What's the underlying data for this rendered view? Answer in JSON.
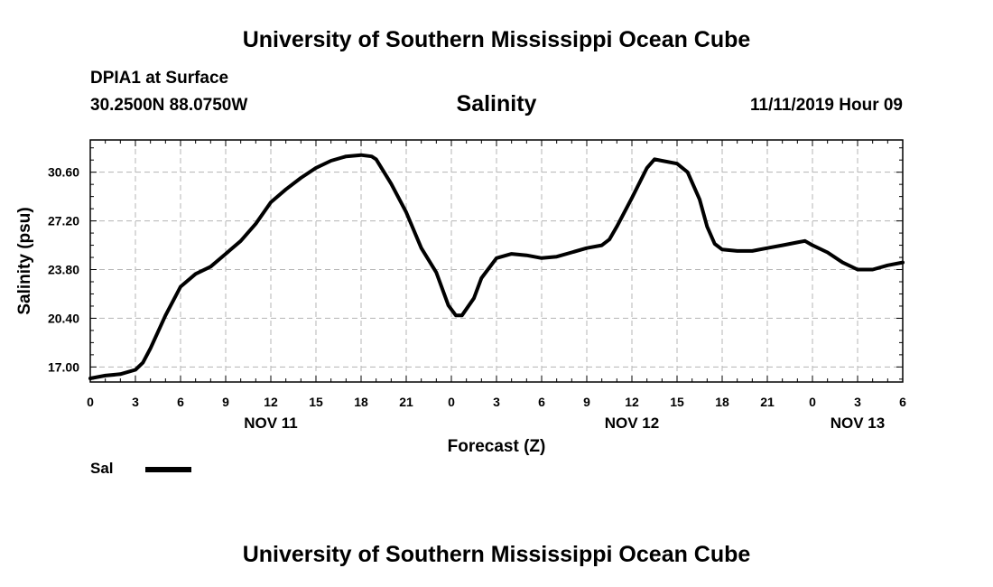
{
  "header": {
    "title": "University of Southern Mississippi Ocean Cube",
    "station": "DPIA1 at Surface",
    "coords": "30.2500N 88.0750W",
    "variable": "Salinity",
    "issued": "11/11/2019 Hour 09"
  },
  "footer": {
    "title": "University of Southern Mississippi Ocean Cube"
  },
  "legend": {
    "label": "Sal"
  },
  "chart_data": {
    "type": "line",
    "title": "Salinity",
    "xlabel": "Forecast (Z)",
    "ylabel": "Salinity (psu)",
    "x_unit": "hours from NOV 11 00Z",
    "xlim": [
      0,
      54
    ],
    "ylim": [
      15.95,
      32.85
    ],
    "y_ticks": [
      17.0,
      20.4,
      23.8,
      27.2,
      30.6
    ],
    "y_tick_labels": [
      "17.00",
      "20.40",
      "23.80",
      "27.20",
      "30.60"
    ],
    "x_ticks": [
      0,
      3,
      6,
      9,
      12,
      15,
      18,
      21,
      24,
      27,
      30,
      33,
      36,
      39,
      42,
      45,
      48,
      51,
      54
    ],
    "x_tick_labels": [
      "0",
      "3",
      "6",
      "9",
      "12",
      "15",
      "18",
      "21",
      "0",
      "3",
      "6",
      "9",
      "12",
      "15",
      "18",
      "21",
      "0",
      "3",
      "6"
    ],
    "date_labels": [
      {
        "x": 12,
        "label": "NOV 11"
      },
      {
        "x": 36,
        "label": "NOV 12"
      },
      {
        "x": 51,
        "label": "NOV 13"
      }
    ],
    "grid": true,
    "series": [
      {
        "name": "Sal",
        "color": "#000000",
        "points": [
          [
            0,
            16.2
          ],
          [
            1,
            16.4
          ],
          [
            2,
            16.5
          ],
          [
            3,
            16.8
          ],
          [
            3.5,
            17.3
          ],
          [
            4,
            18.3
          ],
          [
            5,
            20.6
          ],
          [
            6,
            22.6
          ],
          [
            7,
            23.5
          ],
          [
            8,
            24.0
          ],
          [
            9,
            24.9
          ],
          [
            10,
            25.8
          ],
          [
            11,
            27.0
          ],
          [
            12,
            28.5
          ],
          [
            13,
            29.4
          ],
          [
            14,
            30.2
          ],
          [
            15,
            30.9
          ],
          [
            16,
            31.4
          ],
          [
            17,
            31.7
          ],
          [
            18,
            31.8
          ],
          [
            18.7,
            31.7
          ],
          [
            19,
            31.5
          ],
          [
            20,
            29.8
          ],
          [
            21,
            27.8
          ],
          [
            22,
            25.3
          ],
          [
            23,
            23.6
          ],
          [
            23.8,
            21.3
          ],
          [
            24.3,
            20.6
          ],
          [
            24.7,
            20.6
          ],
          [
            25.5,
            21.8
          ],
          [
            26,
            23.2
          ],
          [
            27,
            24.6
          ],
          [
            28,
            24.9
          ],
          [
            29,
            24.8
          ],
          [
            30,
            24.6
          ],
          [
            31,
            24.7
          ],
          [
            32,
            25.0
          ],
          [
            33,
            25.3
          ],
          [
            34,
            25.5
          ],
          [
            34.5,
            25.9
          ],
          [
            35,
            26.8
          ],
          [
            36,
            28.8
          ],
          [
            37,
            30.9
          ],
          [
            37.5,
            31.5
          ],
          [
            38,
            31.4
          ],
          [
            39,
            31.2
          ],
          [
            39.7,
            30.6
          ],
          [
            40.5,
            28.7
          ],
          [
            41,
            26.8
          ],
          [
            41.5,
            25.6
          ],
          [
            42,
            25.2
          ],
          [
            43,
            25.1
          ],
          [
            44,
            25.1
          ],
          [
            45,
            25.3
          ],
          [
            46,
            25.5
          ],
          [
            47,
            25.7
          ],
          [
            47.5,
            25.8
          ],
          [
            48,
            25.5
          ],
          [
            49,
            25.0
          ],
          [
            50,
            24.3
          ],
          [
            51,
            23.8
          ],
          [
            52,
            23.8
          ],
          [
            53,
            24.1
          ],
          [
            54,
            24.3
          ]
        ]
      }
    ]
  }
}
